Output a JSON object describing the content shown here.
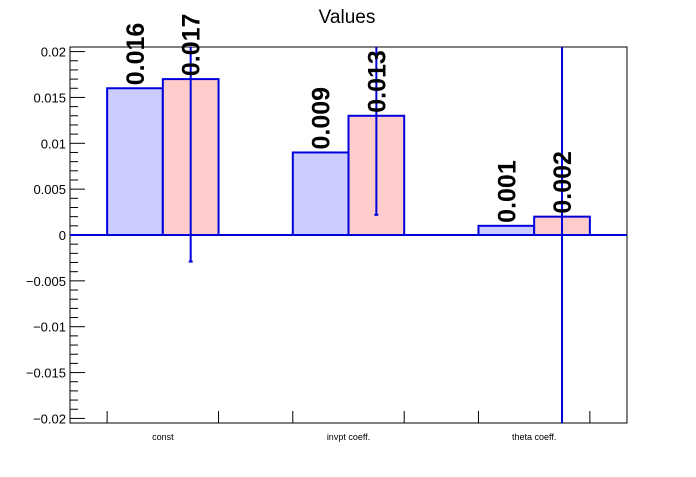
{
  "chart_data": {
    "type": "bar",
    "title": "Values",
    "xlabel": "",
    "ylabel": "",
    "categories": [
      "const",
      "invpt coeff.",
      "theta coeff."
    ],
    "ylim": [
      -0.0205,
      0.0205
    ],
    "yticks": [
      -0.02,
      -0.015,
      -0.01,
      -0.005,
      0,
      0.005,
      0.01,
      0.015,
      0.02
    ],
    "ytick_labels": [
      "−0.02",
      "−0.015",
      "−0.01",
      "−0.005",
      "0",
      "0.005",
      "0.01",
      "0.015",
      "0.02"
    ],
    "grid": false,
    "legend": "none",
    "series": [
      {
        "values": [
          0.016,
          0.009,
          0.001
        ],
        "labels": [
          "0.016",
          "0.009",
          "0.001"
        ],
        "errors": null,
        "fill": "#ccccff",
        "stroke": "#0000dd"
      },
      {
        "values": [
          0.017,
          0.013,
          0.002
        ],
        "labels": [
          "0.017",
          "0.013",
          "0.002"
        ],
        "errors": [
          0.0199,
          0.0108,
          0.0245
        ],
        "fill": "#ffcccc",
        "stroke": "#0000dd"
      }
    ]
  }
}
